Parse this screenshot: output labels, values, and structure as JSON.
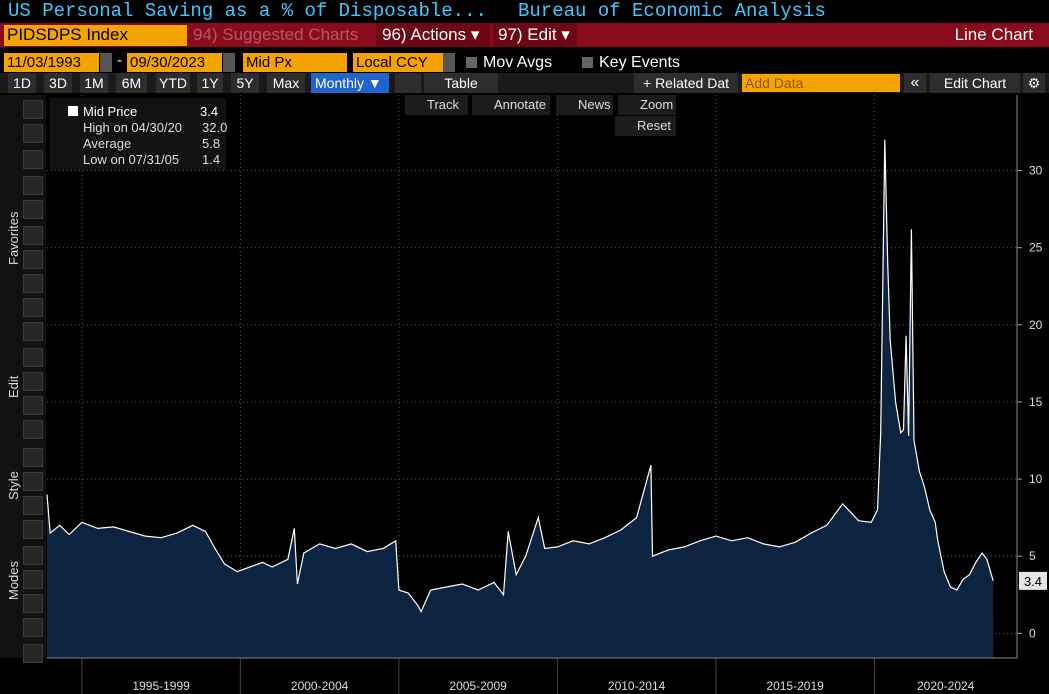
{
  "header": {
    "title": "US Personal Saving as a % of Disposable...",
    "source": "Bureau of Economic Analysis"
  },
  "menu": {
    "ticker": "PIDSDPS Index",
    "suggested": "94) Suggested Charts",
    "actions": "96) Actions ▾",
    "edit": "97) Edit ▾",
    "chart_type": "Line Chart"
  },
  "controls": {
    "start_date": "11/03/1993",
    "date_sep": "-",
    "end_date": "09/30/2023",
    "field": "Mid Px",
    "currency": "Local CCY",
    "mov_avgs": "Mov Avgs",
    "key_events": "Key Events"
  },
  "periods": [
    "1D",
    "3D",
    "1M",
    "6M",
    "YTD",
    "1Y",
    "5Y",
    "Max"
  ],
  "toolbar": {
    "frequency": "Monthly ▼",
    "table": "Table",
    "related": "+ Related Dat",
    "add_data": "Add Data",
    "collapse": "«",
    "edit_chart": "Edit Chart"
  },
  "chart_tools": [
    "Track",
    "Annotate",
    "News",
    "Zoom",
    "Reset"
  ],
  "side_labels": [
    "Favorites",
    "Edit",
    "Style",
    "Modes"
  ],
  "legend": [
    {
      "label": "High on 04/30/20",
      "value": "32.0"
    },
    {
      "label": "Average",
      "value": "5.8"
    },
    {
      "label": "Low on 07/31/05",
      "value": "1.4"
    }
  ],
  "chart_data": {
    "type": "area",
    "x": [
      1993.9,
      1994.0,
      1994.3,
      1994.6,
      1995.0,
      1995.5,
      1996.0,
      1996.5,
      1997.0,
      1997.5,
      1998.0,
      1998.5,
      1998.9,
      1999.2,
      1999.5,
      1999.9,
      2000.3,
      2000.7,
      2001.0,
      2001.5,
      2001.7,
      2001.8,
      2002.0,
      2002.5,
      2003.0,
      2003.5,
      2004.0,
      2004.5,
      2004.9,
      2005.0,
      2005.3,
      2005.6,
      2005.7,
      2006.0,
      2006.5,
      2007.0,
      2007.5,
      2008.0,
      2008.3,
      2008.45,
      2008.7,
      2009.0,
      2009.4,
      2009.6,
      2010.0,
      2010.5,
      2011.0,
      2011.5,
      2012.0,
      2012.5,
      2012.95,
      2013.0,
      2013.5,
      2014.0,
      2014.5,
      2015.0,
      2015.5,
      2016.0,
      2016.5,
      2017.0,
      2017.5,
      2018.0,
      2018.5,
      2019.0,
      2019.5,
      2019.9,
      2020.1,
      2020.2,
      2020.33,
      2020.42,
      2020.5,
      2020.67,
      2020.83,
      2020.92,
      2021.0,
      2021.08,
      2021.17,
      2021.25,
      2021.42,
      2021.58,
      2021.75,
      2021.92,
      2022.0,
      2022.2,
      2022.4,
      2022.6,
      2022.8,
      2023.0,
      2023.2,
      2023.4,
      2023.55,
      2023.75
    ],
    "series": [
      {
        "name": "Mid Price",
        "color": "#ffffff",
        "fill": "#0d2440",
        "values": [
          9.0,
          6.5,
          7.0,
          6.4,
          7.2,
          6.8,
          6.9,
          6.6,
          6.3,
          6.2,
          6.5,
          7.0,
          6.6,
          5.5,
          4.5,
          4.0,
          4.3,
          4.6,
          4.3,
          4.8,
          6.8,
          3.2,
          5.2,
          5.8,
          5.5,
          5.8,
          5.3,
          5.5,
          6.0,
          2.8,
          2.6,
          1.8,
          1.4,
          2.8,
          3.0,
          3.2,
          2.8,
          3.3,
          2.5,
          6.6,
          3.8,
          5.0,
          7.5,
          5.5,
          5.6,
          6.0,
          5.8,
          6.2,
          6.7,
          7.5,
          10.9,
          5.0,
          5.4,
          5.6,
          6.0,
          6.3,
          6.0,
          6.2,
          5.8,
          5.6,
          5.9,
          6.5,
          7.0,
          8.4,
          7.3,
          7.2,
          8.0,
          13.0,
          32.0,
          24.0,
          19.0,
          15.0,
          13.0,
          13.2,
          19.3,
          12.8,
          26.2,
          12.5,
          10.5,
          9.5,
          8.0,
          7.2,
          6.0,
          4.0,
          3.0,
          2.8,
          3.5,
          3.8,
          4.6,
          5.2,
          4.8,
          3.4
        ]
      }
    ],
    "xlim": [
      1993.9,
      2024.5
    ],
    "x_bands": [
      {
        "label": "1995-1999",
        "start": 1995,
        "end": 2000
      },
      {
        "label": "2000-2004",
        "start": 2000,
        "end": 2005
      },
      {
        "label": "2005-2009",
        "start": 2005,
        "end": 2010
      },
      {
        "label": "2010-2014",
        "start": 2010,
        "end": 2015
      },
      {
        "label": "2015-2019",
        "start": 2015,
        "end": 2020
      },
      {
        "label": "2020-2024",
        "start": 2020,
        "end": 2025
      }
    ],
    "ylim": [
      -1.6,
      34.9
    ],
    "yticks": [
      0,
      5,
      10,
      15,
      20,
      25,
      30
    ],
    "grid": true
  }
}
